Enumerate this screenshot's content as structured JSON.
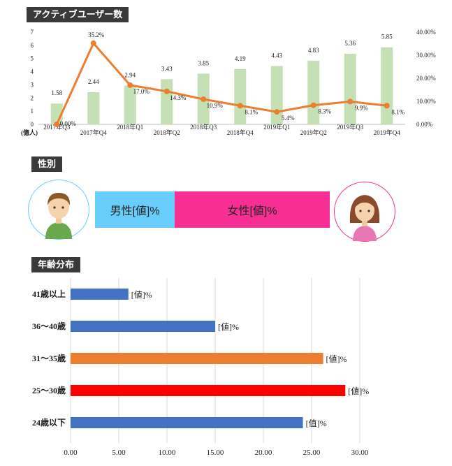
{
  "sections": {
    "active_users": "アクティブユーザー数",
    "gender": "性別",
    "age": "年齢分布"
  },
  "colors": {
    "bar_green": "#c5e0b4",
    "line_orange": "#ed7d31",
    "male": "#69cdfb",
    "female": "#f72e94",
    "age_blue": "#4472c4",
    "age_orange": "#ed7d31",
    "age_red": "#ff0000"
  },
  "gender": {
    "male_label": "男性[値]%",
    "female_label": "女性[値]%",
    "male_share": 0.34,
    "female_share": 0.66
  },
  "chart_data": [
    {
      "type": "bar+line",
      "title": "アクティブユーザー数",
      "ylabel": "(億人)",
      "categories": [
        "2017年Q3",
        "2017年Q4",
        "2018年Q1",
        "2018年Q2",
        "2018年Q3",
        "2018年Q4",
        "2019年Q1",
        "2019年Q2",
        "2019年Q3",
        "2019年Q4"
      ],
      "series": [
        {
          "type": "bar",
          "axis": "left",
          "values": [
            1.58,
            2.44,
            2.94,
            3.43,
            3.85,
            4.19,
            4.43,
            4.83,
            5.36,
            5.85
          ],
          "labels": [
            "1.58",
            "2.44",
            "2.94",
            "3.43",
            "3.85",
            "4.19",
            "4.43",
            "4.83",
            "5.36",
            "5.85"
          ]
        },
        {
          "type": "line",
          "axis": "right",
          "values": [
            0.0,
            35.2,
            17.0,
            14.3,
            10.9,
            8.1,
            5.4,
            8.3,
            9.9,
            8.1
          ],
          "labels": [
            "0.00%",
            "35.2%",
            "17.0%",
            "14.3%",
            "10.9%",
            "8.1%",
            "5.4%",
            "8.3%",
            "9.9%",
            "8.1%"
          ]
        }
      ],
      "y_left": {
        "min": 0,
        "max": 7,
        "ticks": [
          "0",
          "1",
          "2",
          "3",
          "4",
          "5",
          "6",
          "7"
        ]
      },
      "y_right": {
        "min": 0,
        "max": 40,
        "ticks": [
          "0.00%",
          "10.00%",
          "20.00%",
          "30.00%",
          "40.00%"
        ]
      }
    },
    {
      "type": "bar",
      "orientation": "horizontal",
      "title": "年齢分布",
      "categories": [
        "41歳以上",
        "36～40歳",
        "31～35歳",
        "25～30歳",
        "24歳以下"
      ],
      "values": [
        6.0,
        15.0,
        26.2,
        28.5,
        24.1
      ],
      "bar_colors": [
        "#4472c4",
        "#4472c4",
        "#ed7d31",
        "#ff0000",
        "#4472c4"
      ],
      "value_labels": [
        "[値]%",
        "[値]%",
        "[値]%",
        "[値]%",
        "[值]%"
      ],
      "xlim": [
        0,
        30
      ],
      "x_ticks": [
        "0.00",
        "5.00",
        "10.00",
        "15.00",
        "20.00",
        "25.00",
        "30.00"
      ],
      "grid": true
    }
  ]
}
